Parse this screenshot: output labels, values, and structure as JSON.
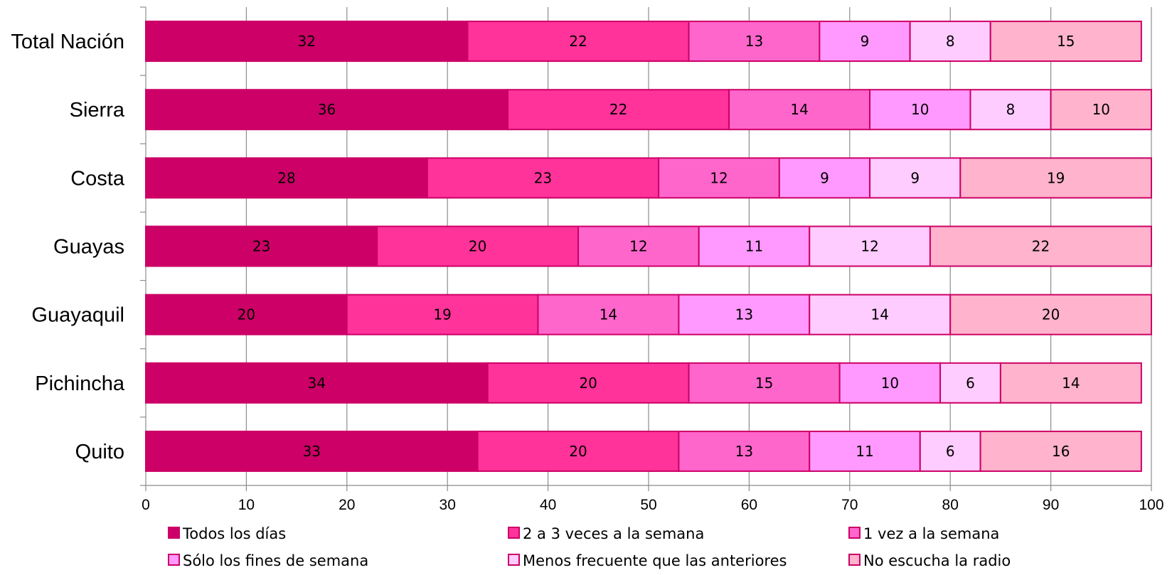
{
  "chart_data": {
    "type": "bar",
    "orientation": "horizontal",
    "stacked": true,
    "title": "",
    "xlabel": "",
    "ylabel": "",
    "xlim": [
      0,
      100
    ],
    "xticks": [
      0,
      10,
      20,
      30,
      40,
      50,
      60,
      70,
      80,
      90,
      100
    ],
    "grid": true,
    "legend_position": "bottom",
    "categories": [
      "Total Nación",
      "Sierra",
      "Costa",
      "Guayas",
      "Guayaquil",
      "Pichincha",
      "Quito"
    ],
    "series": [
      {
        "name": "Todos los días",
        "color": "#cc0066",
        "values": [
          32,
          36,
          28,
          23,
          20,
          34,
          33
        ]
      },
      {
        "name": "2 a 3 veces a la semana",
        "color": "#ff3399",
        "values": [
          22,
          22,
          23,
          20,
          19,
          20,
          20
        ]
      },
      {
        "name": "1 vez a la semana",
        "color": "#ff66cc",
        "values": [
          13,
          14,
          12,
          12,
          14,
          15,
          13
        ]
      },
      {
        "name": "Sólo los fines de semana",
        "color": "#ff99ff",
        "values": [
          9,
          10,
          9,
          11,
          13,
          10,
          11
        ]
      },
      {
        "name": "Menos frecuente que las anteriores",
        "color": "#ffccff",
        "values": [
          8,
          8,
          9,
          12,
          14,
          6,
          6
        ]
      },
      {
        "name": "No escucha la radio",
        "color": "#ffb3cc",
        "values": [
          15,
          10,
          19,
          22,
          20,
          14,
          16
        ]
      }
    ],
    "border_color": "#cc0066"
  }
}
